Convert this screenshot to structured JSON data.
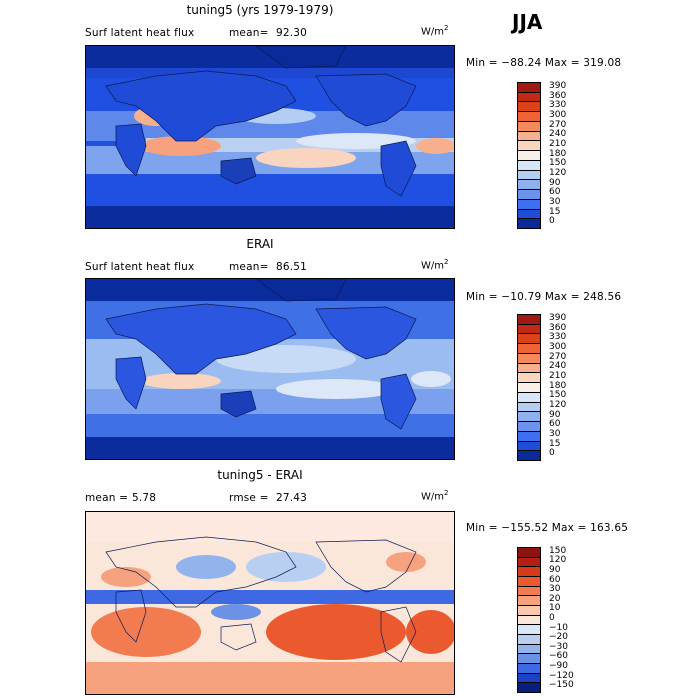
{
  "season": "JJA",
  "panels": [
    {
      "title": "tuning5 (yrs 1979-1979)",
      "left_label": "Surf latent heat flux",
      "stat1_label": "mean=",
      "stat1_value": "92.30",
      "stat2_label": "",
      "stat2_value": "",
      "units": "W/m",
      "units_exp": "2",
      "minmax": "Min = −88.24  Max = 319.08",
      "colorbar": [
        "390",
        "360",
        "330",
        "300",
        "270",
        "240",
        "210",
        "180",
        "150",
        "120",
        "90",
        "60",
        "30",
        "15",
        "0"
      ],
      "colors": [
        "#9e1a12",
        "#c02a16",
        "#dc4219",
        "#ef6233",
        "#f48a5c",
        "#f7b08e",
        "#fad6bf",
        "#f7efe8",
        "#d6e6f8",
        "#b4cdf3",
        "#8fb1ee",
        "#6b93eb",
        "#3f6ef0",
        "#1f4ed6",
        "#0a2a9a"
      ]
    },
    {
      "title": "ERAI",
      "left_label": "Surf latent heat flux",
      "stat1_label": "mean=",
      "stat1_value": "86.51",
      "stat2_label": "",
      "stat2_value": "",
      "units": "W/m",
      "units_exp": "2",
      "minmax": "Min = −10.79  Max = 248.56",
      "colorbar": [
        "390",
        "360",
        "330",
        "300",
        "270",
        "240",
        "210",
        "180",
        "150",
        "120",
        "90",
        "60",
        "30",
        "15",
        "0"
      ],
      "colors": [
        "#9e1a12",
        "#c02a16",
        "#dc4219",
        "#ef6233",
        "#f48a5c",
        "#f7b08e",
        "#fad6bf",
        "#f7efe8",
        "#d6e6f8",
        "#b4cdf3",
        "#8fb1ee",
        "#6b93eb",
        "#3f6ef0",
        "#1f4ed6",
        "#0a2a9a"
      ]
    },
    {
      "title": "tuning5 - ERAI",
      "left_label": "mean =",
      "stat1_label": "",
      "stat1_value": "5.78",
      "stat2_label": "rmse =",
      "stat2_value": "27.43",
      "units": "W/m",
      "units_exp": "2",
      "minmax": "Min = −155.52  Max = 163.65",
      "colorbar": [
        "150",
        "120",
        "90",
        "60",
        "30",
        "20",
        "10",
        "0",
        "−10",
        "−20",
        "−30",
        "−60",
        "−90",
        "−120",
        "−150"
      ],
      "colors": [
        "#8c1410",
        "#b41f14",
        "#d53a1a",
        "#ea5a2e",
        "#f27c50",
        "#f6a27e",
        "#f9c8ad",
        "#fbe6da",
        "#dbe7f8",
        "#b9cff2",
        "#93b3ec",
        "#6c92e6",
        "#3f69e3",
        "#1d42c8",
        "#081f7e"
      ]
    }
  ],
  "chart_data": [
    {
      "type": "heatmap",
      "title": "tuning5 (yrs 1979-1979)",
      "variable": "Surf latent heat flux",
      "units": "W/m2",
      "mean": 92.3,
      "min": -88.24,
      "max": 319.08,
      "levels": [
        0,
        15,
        30,
        60,
        90,
        120,
        150,
        180,
        210,
        240,
        270,
        300,
        330,
        360,
        390
      ]
    },
    {
      "type": "heatmap",
      "title": "ERAI",
      "variable": "Surf latent heat flux",
      "units": "W/m2",
      "mean": 86.51,
      "min": -10.79,
      "max": 248.56,
      "levels": [
        0,
        15,
        30,
        60,
        90,
        120,
        150,
        180,
        210,
        240,
        270,
        300,
        330,
        360,
        390
      ]
    },
    {
      "type": "heatmap",
      "title": "tuning5 - ERAI",
      "units": "W/m2",
      "mean": 5.78,
      "rmse": 27.43,
      "min": -155.52,
      "max": 163.65,
      "levels": [
        -150,
        -120,
        -90,
        -60,
        -30,
        -20,
        -10,
        0,
        10,
        20,
        30,
        60,
        90,
        120,
        150
      ]
    }
  ]
}
